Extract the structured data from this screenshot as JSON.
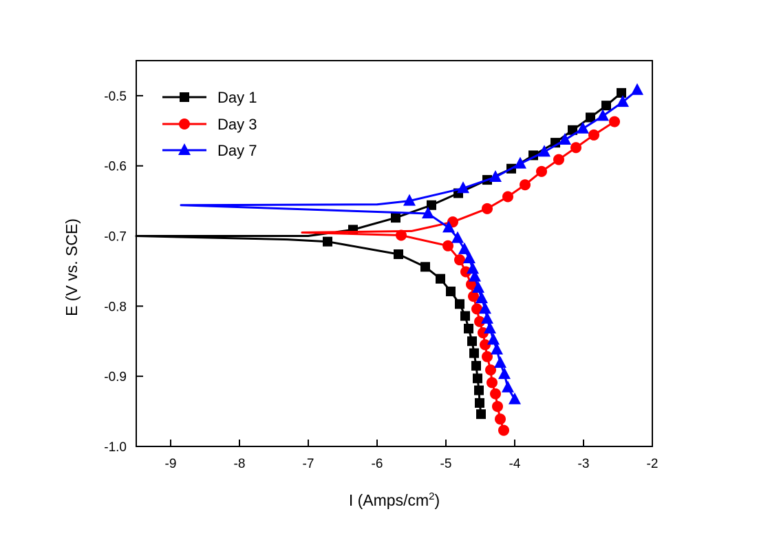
{
  "chart_data": {
    "type": "line",
    "title": "",
    "xlabel": "I (Amps/cm",
    "xlabel_sup": "2",
    "xlabel_end": ")",
    "ylabel": "E (V vs. SCE)",
    "xlim": [
      -9.5,
      -2
    ],
    "ylim": [
      -1.0,
      -0.45
    ],
    "xticks": [
      -9,
      -8,
      -7,
      -6,
      -5,
      -4,
      -3,
      -2
    ],
    "xtick_labels": [
      "-9",
      "-8",
      "-7",
      "-6",
      "-5",
      "-4",
      "-3",
      "-2"
    ],
    "yticks": [
      -0.5,
      -0.6,
      -0.7,
      -0.8,
      -0.9,
      -1.0
    ],
    "ytick_labels": [
      "-0.5",
      "-0.6",
      "-0.7",
      "-0.8",
      "-0.9",
      "-1.0"
    ],
    "grid": false,
    "legend_position": "top-left",
    "series": [
      {
        "name": "Day 1",
        "color": "#000000",
        "marker": "square",
        "cathodic": [
          [
            -6.72,
            -0.708
          ],
          [
            -5.69,
            -0.726
          ],
          [
            -5.3,
            -0.744
          ],
          [
            -5.08,
            -0.761
          ],
          [
            -4.93,
            -0.779
          ],
          [
            -4.8,
            -0.797
          ],
          [
            -4.72,
            -0.814
          ],
          [
            -4.67,
            -0.832
          ],
          [
            -4.62,
            -0.85
          ],
          [
            -4.59,
            -0.867
          ],
          [
            -4.56,
            -0.885
          ],
          [
            -4.54,
            -0.903
          ],
          [
            -4.52,
            -0.92
          ],
          [
            -4.51,
            -0.938
          ],
          [
            -4.49,
            -0.954
          ]
        ],
        "tail": [
          [
            -7.3,
            -0.705
          ],
          [
            -9.5,
            -0.7
          ],
          [
            -7.0,
            -0.7
          ]
        ],
        "anodic": [
          [
            -6.35,
            -0.691
          ],
          [
            -5.73,
            -0.674
          ],
          [
            -5.21,
            -0.656
          ],
          [
            -4.82,
            -0.639
          ],
          [
            -4.4,
            -0.62
          ],
          [
            -4.05,
            -0.604
          ],
          [
            -3.73,
            -0.585
          ],
          [
            -3.41,
            -0.567
          ],
          [
            -3.16,
            -0.549
          ],
          [
            -2.9,
            -0.531
          ],
          [
            -2.67,
            -0.514
          ],
          [
            -2.45,
            -0.496
          ]
        ]
      },
      {
        "name": "Day 3",
        "color": "#ff0000",
        "marker": "circle",
        "cathodic": [
          [
            -5.65,
            -0.699
          ],
          [
            -4.97,
            -0.714
          ],
          [
            -4.8,
            -0.734
          ],
          [
            -4.71,
            -0.751
          ],
          [
            -4.63,
            -0.769
          ],
          [
            -4.6,
            -0.786
          ],
          [
            -4.55,
            -0.804
          ],
          [
            -4.51,
            -0.822
          ],
          [
            -4.46,
            -0.838
          ],
          [
            -4.43,
            -0.855
          ],
          [
            -4.4,
            -0.872
          ],
          [
            -4.35,
            -0.891
          ],
          [
            -4.33,
            -0.909
          ],
          [
            -4.28,
            -0.925
          ],
          [
            -4.25,
            -0.943
          ],
          [
            -4.21,
            -0.961
          ],
          [
            -4.16,
            -0.977
          ]
        ],
        "tail": [
          [
            -7.09,
            -0.695
          ],
          [
            -5.5,
            -0.693
          ]
        ],
        "anodic": [
          [
            -4.9,
            -0.68
          ],
          [
            -4.4,
            -0.661
          ],
          [
            -4.1,
            -0.644
          ],
          [
            -3.85,
            -0.627
          ],
          [
            -3.61,
            -0.608
          ],
          [
            -3.36,
            -0.591
          ],
          [
            -3.11,
            -0.574
          ],
          [
            -2.85,
            -0.556
          ],
          [
            -2.55,
            -0.537
          ]
        ]
      },
      {
        "name": "Day 7",
        "color": "#0000ff",
        "marker": "triangle",
        "cathodic": [
          [
            -5.26,
            -0.668
          ],
          [
            -4.96,
            -0.688
          ],
          [
            -4.83,
            -0.703
          ],
          [
            -4.73,
            -0.719
          ],
          [
            -4.66,
            -0.732
          ],
          [
            -4.61,
            -0.747
          ],
          [
            -4.58,
            -0.758
          ],
          [
            -4.53,
            -0.774
          ],
          [
            -4.48,
            -0.789
          ],
          [
            -4.43,
            -0.804
          ],
          [
            -4.4,
            -0.818
          ],
          [
            -4.36,
            -0.832
          ],
          [
            -4.31,
            -0.848
          ],
          [
            -4.26,
            -0.862
          ],
          [
            -4.21,
            -0.881
          ],
          [
            -4.15,
            -0.897
          ],
          [
            -4.1,
            -0.916
          ],
          [
            -4.0,
            -0.933
          ]
        ],
        "tail": [
          [
            -8.85,
            -0.656
          ],
          [
            -6.0,
            -0.655
          ]
        ],
        "anodic": [
          [
            -5.53,
            -0.65
          ],
          [
            -4.75,
            -0.632
          ],
          [
            -4.28,
            -0.616
          ],
          [
            -3.92,
            -0.597
          ],
          [
            -3.57,
            -0.58
          ],
          [
            -3.27,
            -0.563
          ],
          [
            -3.01,
            -0.547
          ],
          [
            -2.72,
            -0.529
          ],
          [
            -2.43,
            -0.509
          ],
          [
            -2.22,
            -0.492
          ]
        ]
      }
    ]
  }
}
